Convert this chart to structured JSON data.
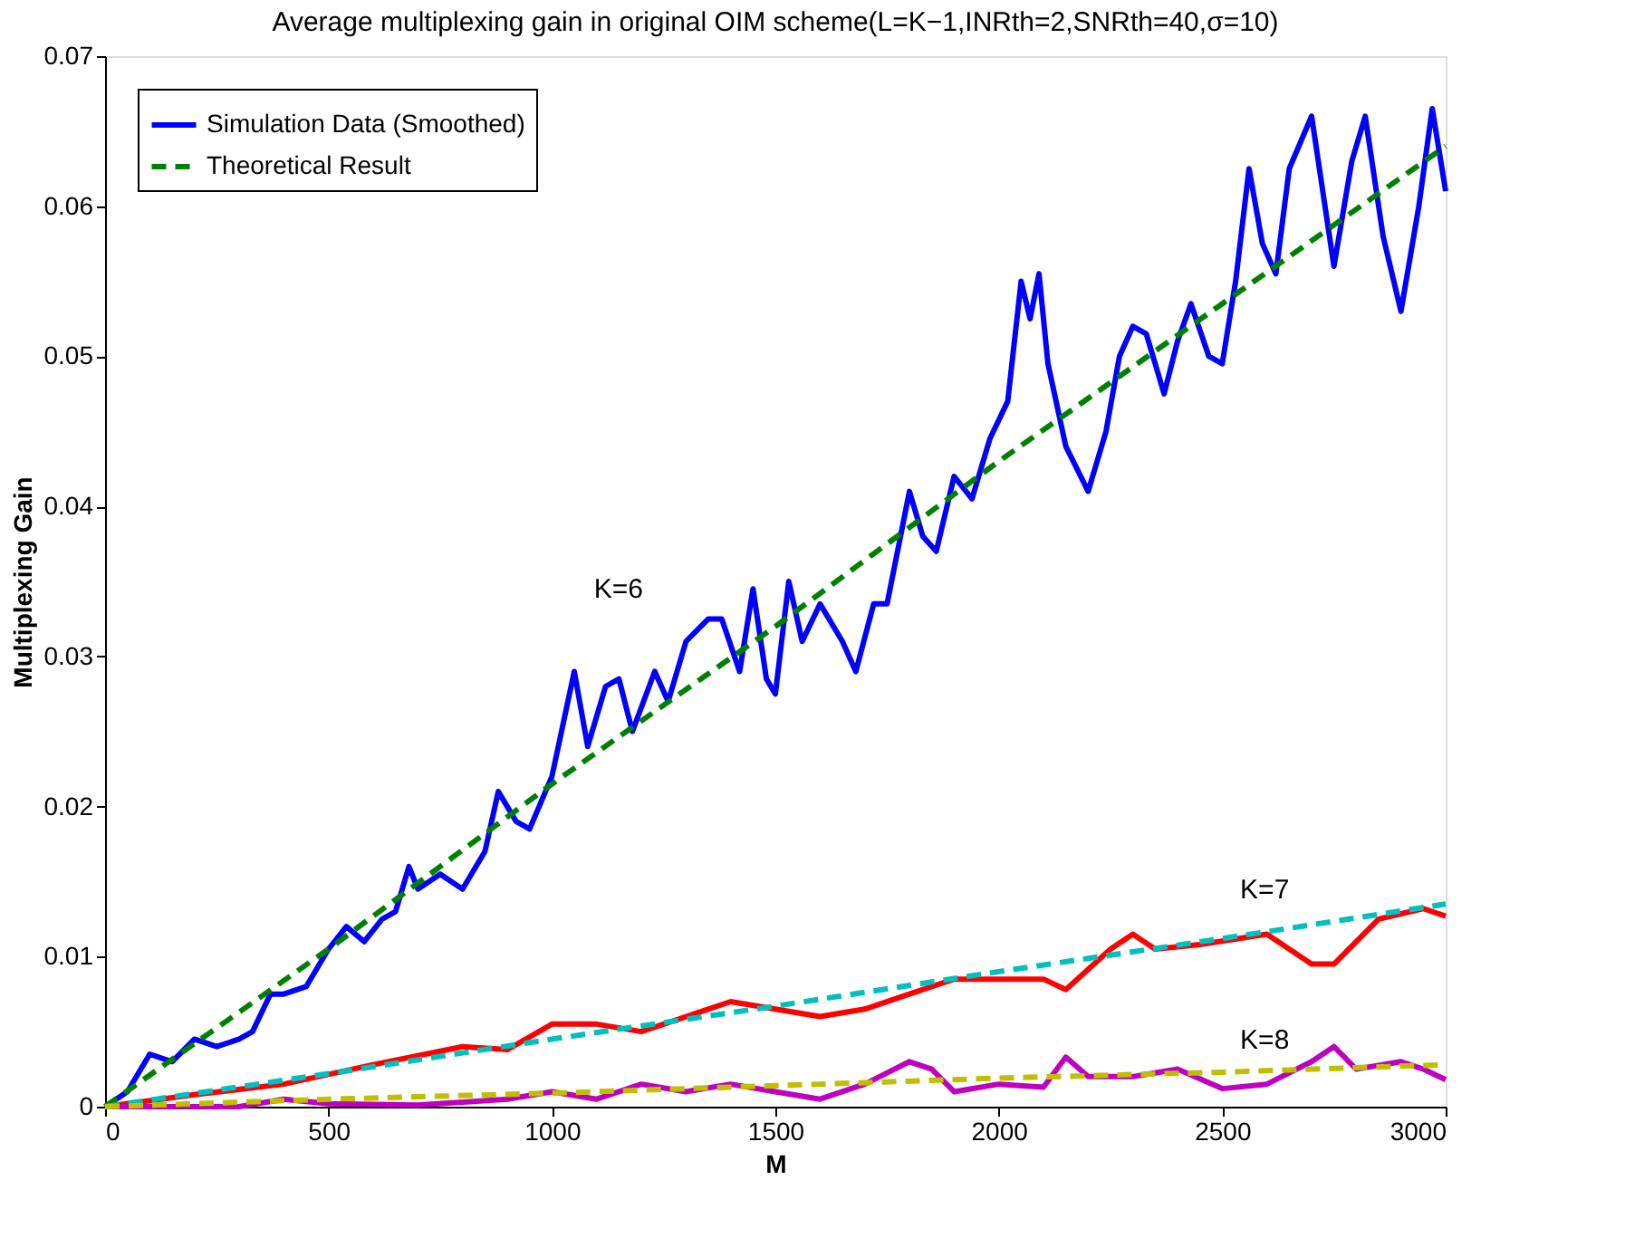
{
  "chart_data": {
    "type": "line",
    "title": "Average multiplexing gain in original OIM scheme(L=K−1,INRth=2,SNRth=40,σ=10)",
    "xlabel": "M",
    "ylabel": "Multiplexing Gain",
    "xlim": [
      0,
      3000
    ],
    "ylim": [
      0,
      0.07
    ],
    "xticks": [
      0,
      500,
      1000,
      1500,
      2000,
      2500,
      3000
    ],
    "yticks": [
      0,
      0.01,
      0.02,
      0.03,
      0.04,
      0.05,
      0.06,
      0.07
    ],
    "grid": false,
    "legend": "top left",
    "marker": "none",
    "series": [
      {
        "name": "Simulation Data (Smoothed)",
        "color": "#0000ff",
        "line_style": "solid",
        "x": [
          0,
          50,
          100,
          150,
          200,
          250,
          300,
          330,
          370,
          400,
          450,
          480,
          500,
          540,
          580,
          620,
          650,
          680,
          700,
          750,
          800,
          850,
          880,
          920,
          950,
          1000,
          1050,
          1080,
          1120,
          1150,
          1180,
          1230,
          1260,
          1300,
          1350,
          1380,
          1420,
          1450,
          1480,
          1500,
          1530,
          1560,
          1600,
          1650,
          1680,
          1720,
          1750,
          1800,
          1830,
          1860,
          1900,
          1940,
          1980,
          2020,
          2050,
          2070,
          2090,
          2110,
          2150,
          2200,
          2240,
          2270,
          2300,
          2330,
          2370,
          2400,
          2430,
          2470,
          2500,
          2530,
          2560,
          2590,
          2620,
          2650,
          2700,
          2750,
          2790,
          2820,
          2860,
          2900,
          2940,
          2970,
          3000
        ],
        "values": [
          0,
          0.001,
          0.0035,
          0.003,
          0.0045,
          0.004,
          0.0045,
          0.005,
          0.0075,
          0.0075,
          0.008,
          0.0095,
          0.0105,
          0.012,
          0.011,
          0.0125,
          0.013,
          0.016,
          0.0145,
          0.0155,
          0.0145,
          0.017,
          0.021,
          0.019,
          0.0185,
          0.022,
          0.029,
          0.024,
          0.028,
          0.0285,
          0.025,
          0.029,
          0.027,
          0.031,
          0.0325,
          0.0325,
          0.029,
          0.0345,
          0.0285,
          0.0275,
          0.035,
          0.031,
          0.0335,
          0.031,
          0.029,
          0.0335,
          0.0335,
          0.041,
          0.038,
          0.037,
          0.042,
          0.0405,
          0.0445,
          0.047,
          0.055,
          0.0525,
          0.0555,
          0.0495,
          0.044,
          0.041,
          0.045,
          0.05,
          0.052,
          0.0515,
          0.0475,
          0.051,
          0.0535,
          0.05,
          0.0495,
          0.055,
          0.0625,
          0.0575,
          0.0555,
          0.0625,
          0.066,
          0.056,
          0.063,
          0.066,
          0.058,
          0.053,
          0.06,
          0.0665,
          0.061
        ]
      },
      {
        "name": "Theoretical Result",
        "color": "#008000",
        "line_style": "dashed",
        "x": [
          0,
          500,
          1000,
          1500,
          2000,
          2500,
          3000
        ],
        "values": [
          0,
          0.0105,
          0.0215,
          0.032,
          0.043,
          0.0535,
          0.064
        ]
      },
      {
        "color": "#ff0000",
        "line_style": "solid",
        "x": [
          0,
          200,
          400,
          600,
          800,
          900,
          1000,
          1100,
          1200,
          1300,
          1400,
          1500,
          1600,
          1700,
          1800,
          1900,
          2000,
          2100,
          2150,
          2250,
          2300,
          2350,
          2450,
          2600,
          2700,
          2750,
          2850,
          2950,
          3000
        ],
        "values": [
          0,
          0.0008,
          0.0015,
          0.0028,
          0.004,
          0.0038,
          0.0055,
          0.0055,
          0.005,
          0.006,
          0.007,
          0.0065,
          0.006,
          0.0065,
          0.0075,
          0.0085,
          0.0085,
          0.0085,
          0.0078,
          0.0105,
          0.0115,
          0.0105,
          0.0108,
          0.0115,
          0.0095,
          0.0095,
          0.0125,
          0.0132,
          0.0127
        ]
      },
      {
        "color": "#00bfbf",
        "line_style": "dashed",
        "x": [
          0,
          500,
          1000,
          1500,
          2000,
          2500,
          3000
        ],
        "values": [
          0,
          0.0022,
          0.0045,
          0.0067,
          0.009,
          0.0112,
          0.0135
        ]
      },
      {
        "color": "#bf00bf",
        "line_style": "solid",
        "x": [
          0,
          300,
          400,
          500,
          700,
          900,
          1000,
          1100,
          1200,
          1300,
          1400,
          1500,
          1600,
          1700,
          1800,
          1850,
          1900,
          2000,
          2100,
          2150,
          2200,
          2300,
          2400,
          2500,
          2600,
          2700,
          2750,
          2800,
          2900,
          2950,
          3000
        ],
        "values": [
          0,
          0,
          0.0005,
          0.0002,
          0.0001,
          0.0005,
          0.001,
          0.0005,
          0.0015,
          0.001,
          0.0015,
          0.001,
          0.0005,
          0.0015,
          0.003,
          0.0025,
          0.001,
          0.0015,
          0.0013,
          0.0033,
          0.002,
          0.002,
          0.0025,
          0.0012,
          0.0015,
          0.003,
          0.004,
          0.0025,
          0.003,
          0.0025,
          0.0018
        ]
      },
      {
        "color": "#bfbf00",
        "line_style": "dashed",
        "x": [
          0,
          500,
          1000,
          1500,
          2000,
          2500,
          3000
        ],
        "values": [
          0,
          0.0005,
          0.0009,
          0.0014,
          0.0019,
          0.0023,
          0.0028
        ]
      }
    ],
    "annotations": [
      "K=6",
      "K=7",
      "K=8"
    ]
  }
}
